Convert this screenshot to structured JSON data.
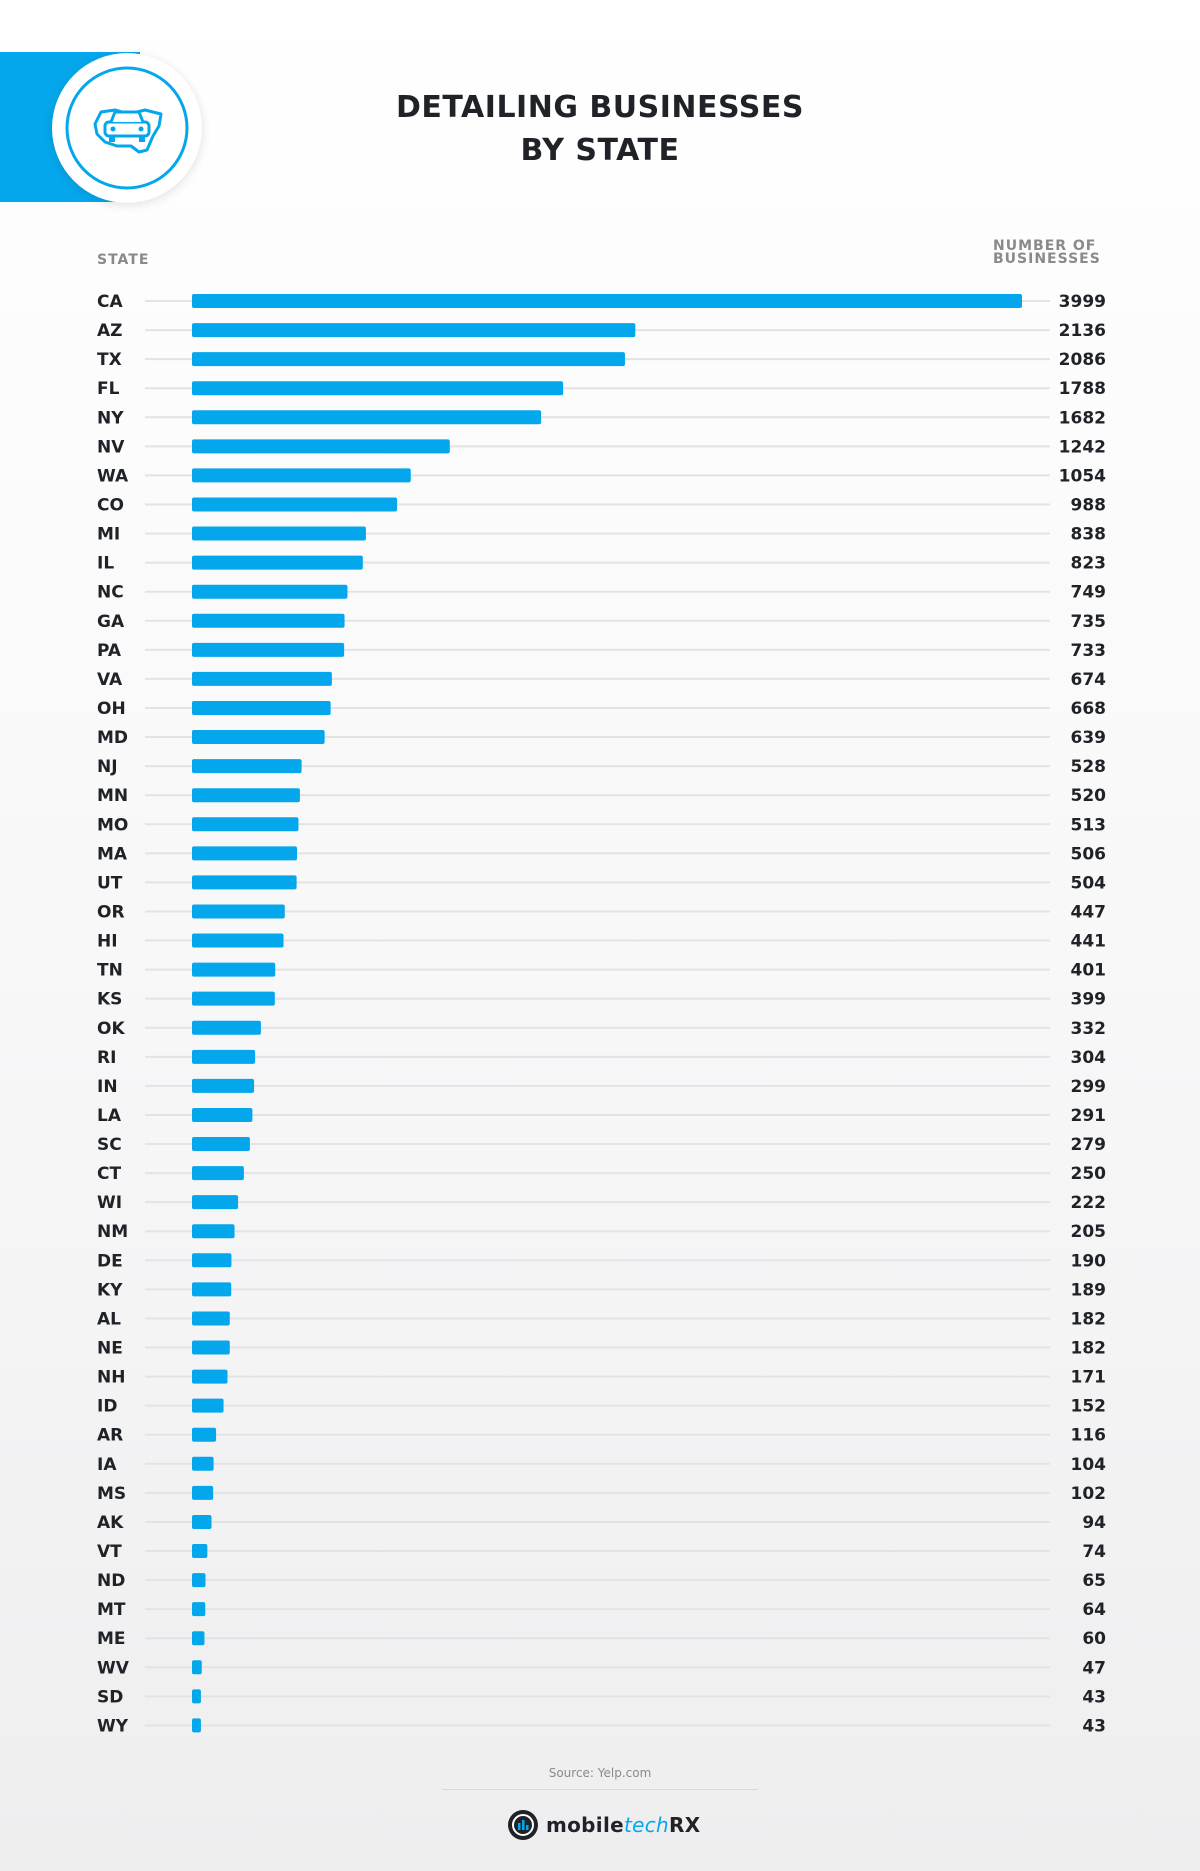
{
  "title_line1": "DETAILING BUSINESSES",
  "title_line2": "BY STATE",
  "source": "Source: Yelp.com",
  "brand": {
    "part1": "mobile",
    "part2": "tech",
    "part3": "RX"
  },
  "colors": {
    "bar": "#05a7ec",
    "accent": "#05a7ec",
    "text": "#1f2328",
    "muted": "#8a8a8a",
    "gridline": "#e3e3e5"
  },
  "icons": {
    "badge": "car-on-us-map-icon",
    "brand": "mobiletechrx-logo-icon"
  },
  "chart_data": {
    "type": "bar",
    "orientation": "horizontal",
    "xlabel": "NUMBER OF BUSINESSES",
    "ylabel": "STATE",
    "xlim": [
      0,
      3999
    ],
    "grid": true,
    "categories": [
      "CA",
      "AZ",
      "TX",
      "FL",
      "NY",
      "NV",
      "WA",
      "CO",
      "MI",
      "IL",
      "NC",
      "GA",
      "PA",
      "VA",
      "OH",
      "MD",
      "NJ",
      "MN",
      "MO",
      "MA",
      "UT",
      "OR",
      "HI",
      "TN",
      "KS",
      "OK",
      "RI",
      "IN",
      "LA",
      "SC",
      "CT",
      "WI",
      "NM",
      "DE",
      "KY",
      "AL",
      "NE",
      "NH",
      "ID",
      "AR",
      "IA",
      "MS",
      "AK",
      "VT",
      "ND",
      "MT",
      "ME",
      "WV",
      "SD",
      "WY"
    ],
    "values": [
      3999,
      2136,
      2086,
      1788,
      1682,
      1242,
      1054,
      988,
      838,
      823,
      749,
      735,
      733,
      674,
      668,
      639,
      528,
      520,
      513,
      506,
      504,
      447,
      441,
      401,
      399,
      332,
      304,
      299,
      291,
      279,
      250,
      222,
      205,
      190,
      189,
      182,
      182,
      171,
      152,
      116,
      104,
      102,
      94,
      74,
      65,
      64,
      60,
      47,
      43,
      43
    ]
  }
}
